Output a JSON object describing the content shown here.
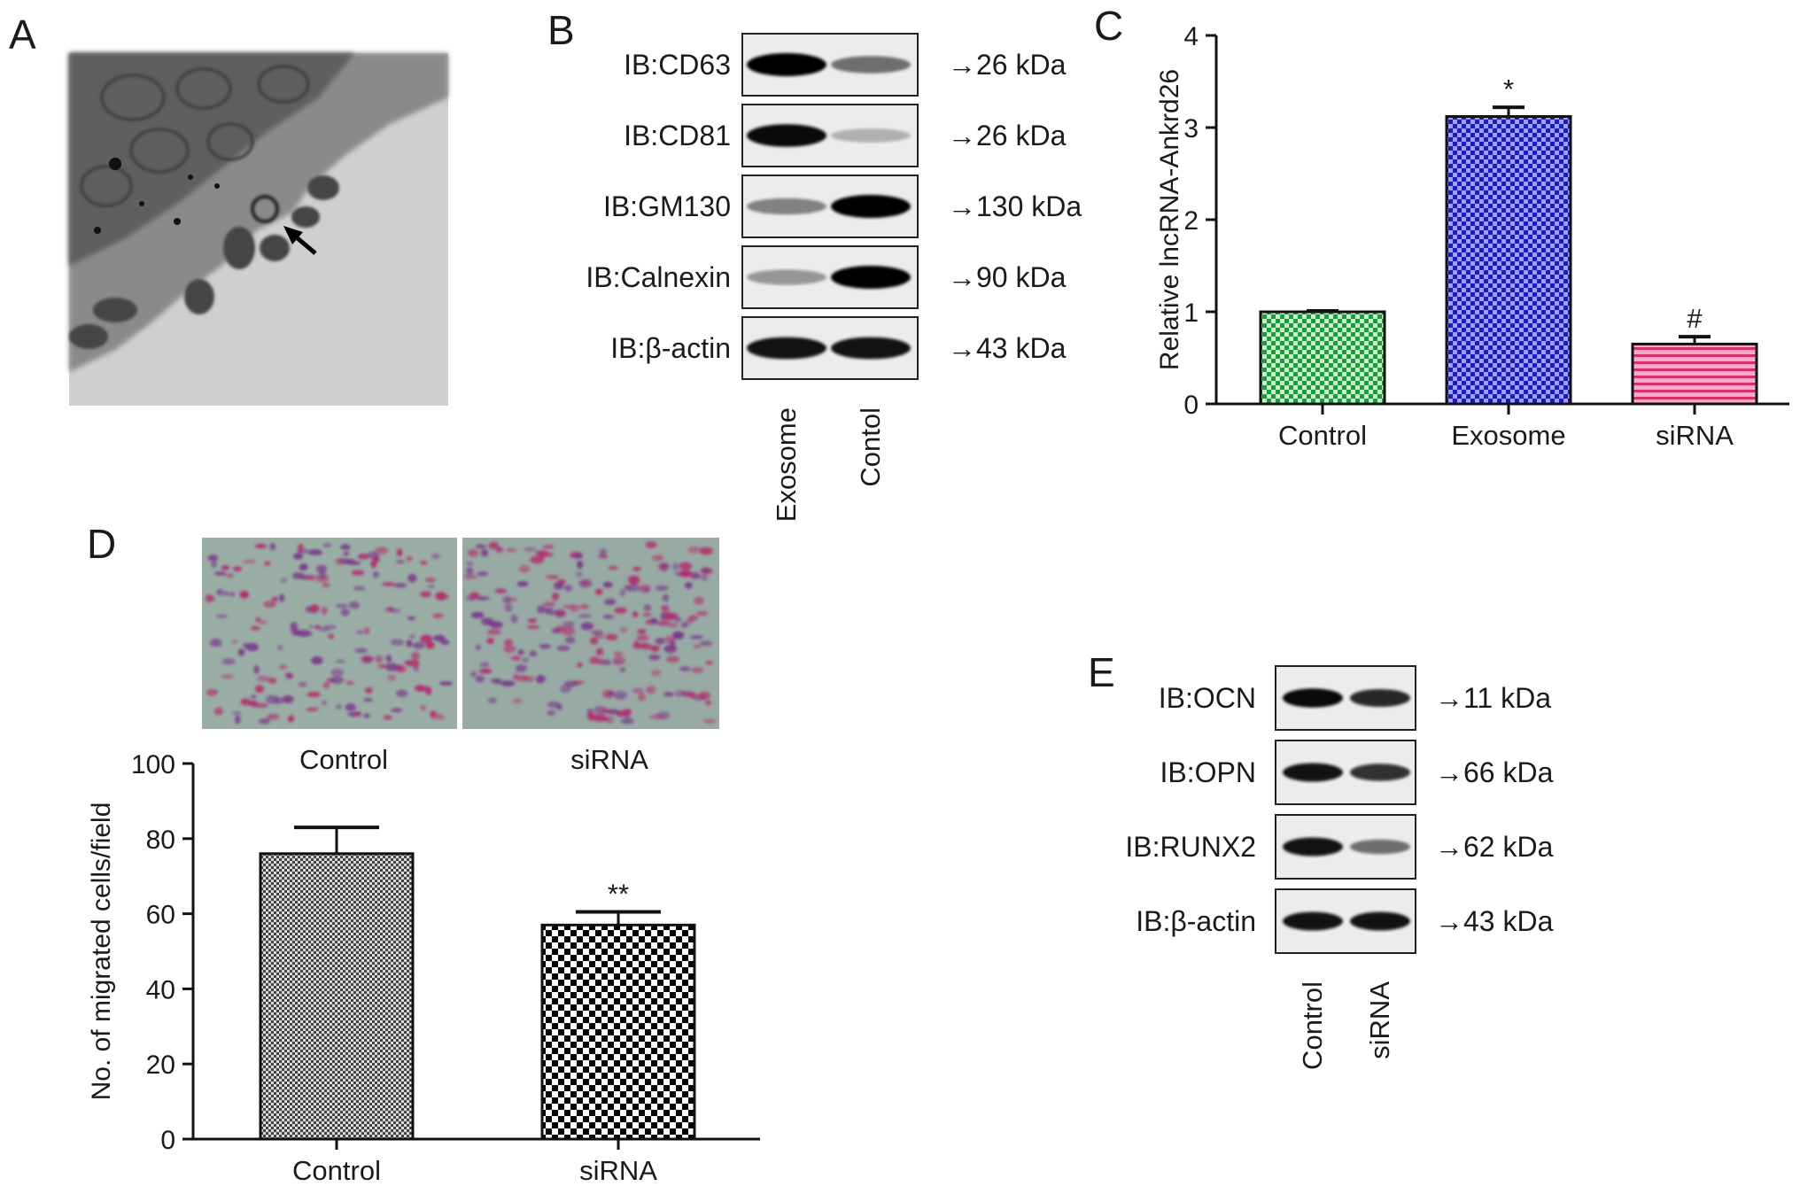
{
  "panels": {
    "A": {
      "letter": "A"
    },
    "B": {
      "letter": "B",
      "rows": [
        {
          "label": "IB:CD63",
          "size": "26 kDa",
          "bands": [
            1.0,
            0.45
          ]
        },
        {
          "label": "IB:CD81",
          "size": "26 kDa",
          "bands": [
            0.95,
            0.12
          ]
        },
        {
          "label": "IB:GM130",
          "size": "130 kDa",
          "bands": [
            0.35,
            1.0
          ]
        },
        {
          "label": "IB:Calnexin",
          "size": "90 kDa",
          "bands": [
            0.25,
            1.0
          ]
        },
        {
          "label": "IB:β-actin",
          "size": "43 kDa",
          "bands": [
            0.9,
            0.9
          ]
        }
      ],
      "lanes": [
        "Exosome",
        "Contol"
      ]
    },
    "C": {
      "letter": "C"
    },
    "D": {
      "letter": "D",
      "micrograph_labels": [
        "Control",
        "siRNA"
      ]
    },
    "E": {
      "letter": "E",
      "rows": [
        {
          "label": "IB:OCN",
          "size": "11 kDa",
          "bands": [
            0.95,
            0.8
          ]
        },
        {
          "label": "IB:OPN",
          "size": "66 kDa",
          "bands": [
            0.9,
            0.75
          ]
        },
        {
          "label": "IB:RUNX2",
          "size": "62 kDa",
          "bands": [
            0.9,
            0.45
          ]
        },
        {
          "label": "IB:β-actin",
          "size": "43 kDa",
          "bands": [
            0.9,
            0.9
          ]
        }
      ],
      "lanes": [
        "Control",
        "siRNA"
      ]
    }
  },
  "chart_data": [
    {
      "id": "C",
      "type": "bar",
      "categories": [
        "Control",
        "Exosome",
        "siRNA"
      ],
      "values": [
        1.0,
        3.12,
        0.65
      ],
      "errors": [
        0.01,
        0.1,
        0.08
      ],
      "annotations": [
        "",
        "*",
        "#"
      ],
      "ylabel": "Relative lncRNA-Ankrd26",
      "ylim": [
        0,
        4
      ],
      "yticks": [
        "0",
        "1",
        "2",
        "3",
        "4"
      ],
      "colors": [
        "#2fa84f",
        "#3b3bd8",
        "#e0407a"
      ]
    },
    {
      "id": "D",
      "type": "bar",
      "categories": [
        "Control",
        "siRNA"
      ],
      "values": [
        76,
        57
      ],
      "errors": [
        7,
        3.5
      ],
      "annotations": [
        "",
        "**"
      ],
      "ylabel": "No. of migrated cells/field",
      "ylim": [
        0,
        100
      ],
      "yticks": [
        "0",
        "20",
        "40",
        "60",
        "80",
        "100"
      ],
      "colors": [
        "#555555",
        "#000000"
      ]
    }
  ]
}
